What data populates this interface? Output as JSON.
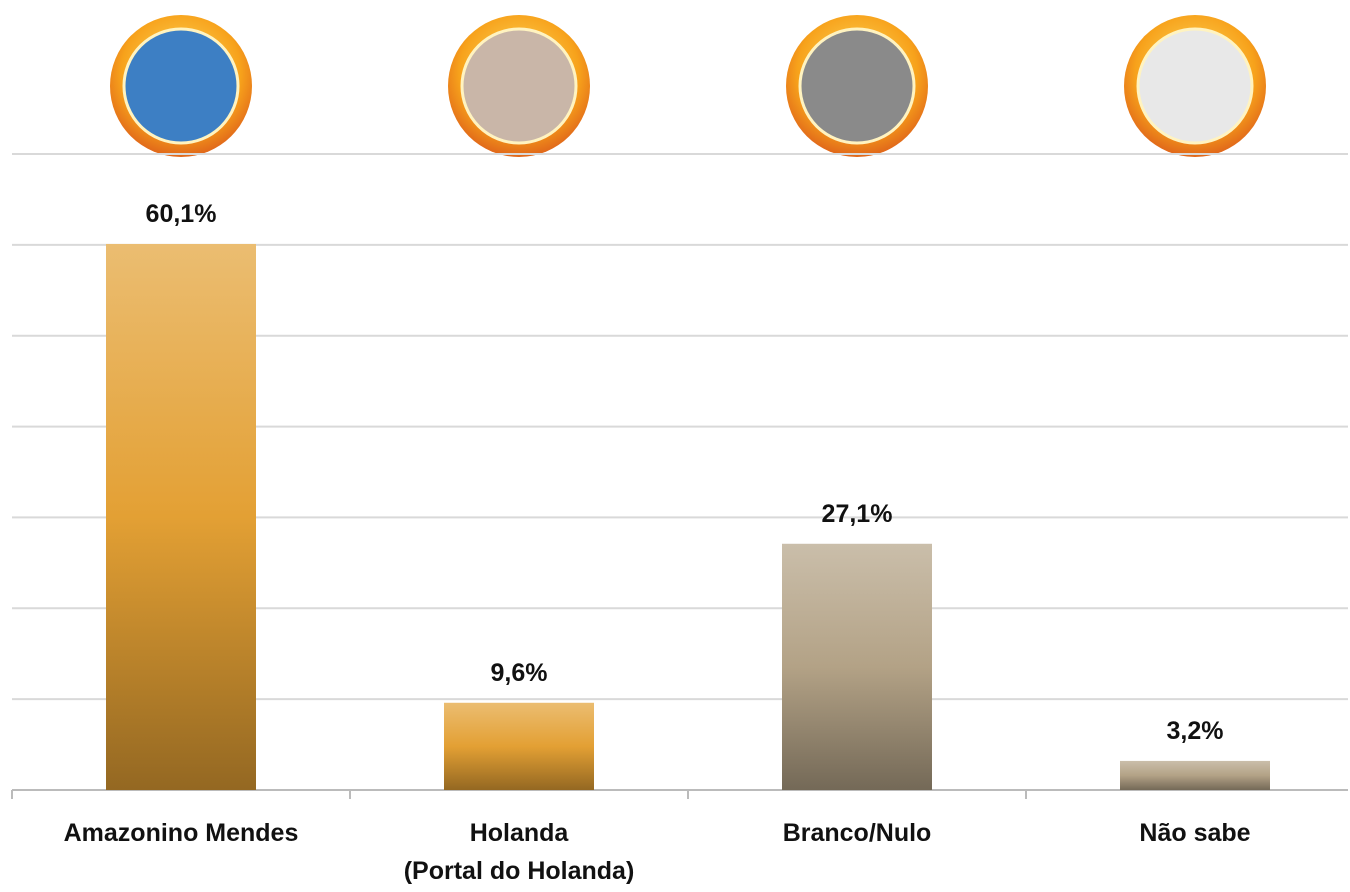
{
  "chart_data": {
    "type": "bar",
    "categories": [
      "Amazonino Mendes",
      "Holanda\n(Portal do Holanda)",
      "Branco/Nulo",
      "Não sabe"
    ],
    "values": [
      60.1,
      9.6,
      27.1,
      3.2
    ],
    "value_labels": [
      "60,1%",
      "9,6%",
      "27,1%",
      "3,2%"
    ],
    "colors": [
      "#e3a034",
      "#e3a034",
      "#b3a286",
      "#b3a286"
    ],
    "ylim": [
      0,
      70
    ],
    "yticks": [
      0,
      10,
      20,
      30,
      40,
      50,
      60,
      70
    ],
    "grid": true
  }
}
